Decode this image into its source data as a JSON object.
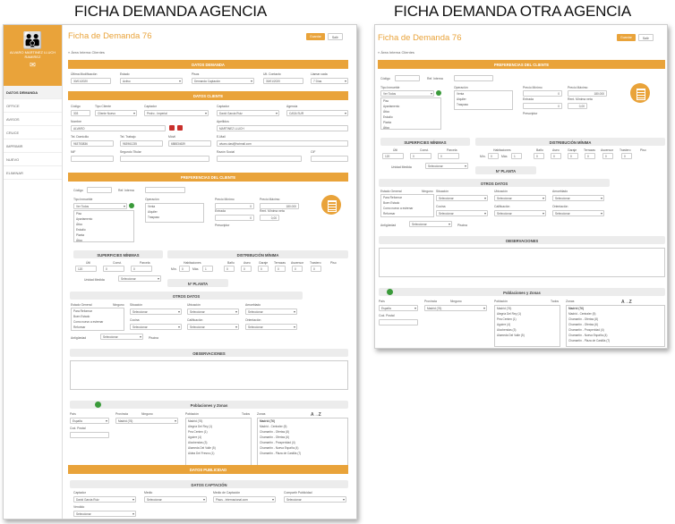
{
  "captions": {
    "left": "FICHA DEMANDA AGENCIA",
    "right": "FICHA DEMANDA OTRA AGENCIA"
  },
  "colors": {
    "accent": "#e9a33a",
    "green": "#3a9a3a",
    "red": "#c9302c"
  },
  "left": {
    "sidebar": {
      "logo_text": "ALVARO MARTINEZ LLUCH\nRAMIREZ",
      "items": [
        "DATOS DEMANDA",
        "OFFICE",
        "AVISOS",
        "CRUCE",
        "IMPRIMIR",
        "NUEVO",
        "ELIMINAR"
      ]
    },
    "title": "Ficha de Demanda 76",
    "buttons": {
      "save": "Guardar",
      "exit": "Salir"
    },
    "breadcrumb": "« Área Interna Clientes",
    "datos_demanda": {
      "header": "DATOS DEMANDA",
      "labels": [
        "Última Modificación",
        "Estado",
        "Pisos",
        "Ult. Contacto",
        "Llamar cada"
      ],
      "values": [
        "30/01/2020",
        "Activo",
        "Demanda Captación",
        "30/01/2020",
        "7 Días"
      ]
    },
    "datos_cliente": {
      "header": "DATOS CLIENTE",
      "labels1": [
        "Código",
        "Tipo Cliente",
        "Captador",
        "Captador",
        "Agencia"
      ],
      "values1": [
        "303",
        "Cliente Nuevo",
        "Pedro - Imperial",
        "David Garcia Ruiz",
        "CASA SUR"
      ],
      "labels2": [
        "Nombre",
        "Apellidos"
      ],
      "values2": [
        "ALVARO",
        "MARTINEZ LLUCH"
      ],
      "labels3": [
        "Tel. Domicilio",
        "Tel. Trabajo",
        "Móvil",
        "E-Mail"
      ],
      "values3": [
        "963753836",
        "963961235",
        "688834639",
        "alvaro.dasi@hotmail.com"
      ],
      "labels4": [
        "NIF",
        "Segundo Titular",
        "Razón Social",
        "CIF"
      ]
    },
    "preferencias": {
      "header": "PREFERENCIAS DEL CLIENTE",
      "codigo_label": "Código",
      "ref_label": "Ref. Interna",
      "tipo_label": "Tipo Inmueble",
      "tipo_value": "Ver Todos",
      "tipos": [
        "Piso",
        "Apartamento",
        "Ático",
        "Estudio",
        "Planta",
        "Ático"
      ],
      "operacion_label": "Operación",
      "operaciones": [
        "Venta",
        "Alquiler",
        "Traspaso"
      ],
      "precio_min_label": "Precio Mínimo",
      "precio_min": "0",
      "precio_max_label": "Precio Máximo",
      "precio_max": "180.000",
      "entrada_label": "Entrada",
      "entrada": "0",
      "renta_label": "Rent. Mínima neta",
      "renta": "0,00",
      "currency": "€",
      "percent": "%",
      "prescriptor_label": "Prescriptor"
    },
    "superficies": {
      "header": "SUPERFICIES MÍNIMAS",
      "labels": [
        "Útil",
        "Const.",
        "Parcela"
      ],
      "values": [
        "120",
        "0",
        "0"
      ],
      "unit": "m²",
      "unidad_label": "Unidad Medida",
      "unidad_value": "Seleccionar"
    },
    "distribucion": {
      "header": "DISTRIBUCIÓN MÍNIMA",
      "labels": [
        "Habitaciones",
        "Baño",
        "Aseo",
        "Garaje",
        "Terrazas",
        "Ascensor",
        "Trastero",
        "Piso"
      ],
      "min_label": "Mín.",
      "max_label": "Máx.",
      "values": [
        "0",
        "1",
        "0",
        "0",
        "0",
        "0",
        "0",
        "0"
      ]
    },
    "nplanta": "Nº PLANTA",
    "otros": {
      "header": "OTROS DATOS",
      "estado_label": "Estado General",
      "ninguno": "Ninguno",
      "estados": [
        "Para Reformar",
        "Buen Estado",
        "Como nuevo a estrenar",
        "Reformar"
      ],
      "labels": [
        "Situación",
        "Ubicación",
        "Amueblado",
        "Cocina",
        "Calificación",
        "Orientación"
      ],
      "value": "Seleccionar",
      "antiguedad_label": "Antigüedad",
      "piscina": "Piscina"
    },
    "observaciones": "OBSERVACIONES",
    "poblaciones": {
      "header": "Poblaciones y Zonas",
      "labels": [
        "País",
        "Provincia",
        "Población",
        "Zonas"
      ],
      "pais": "España",
      "provincia": "Madrid (76)",
      "ninguno": "Ninguno",
      "todos": "Todos",
      "cod_postal": "Cod. Postal",
      "az": "A→Z",
      "poblaciones": [
        "Madrid (76)",
        "Alegría Del Rey (1)",
        "Pea Centen (1)",
        "Aguirre (4)",
        "Alcobendas (3)",
        "Alameda Del Valle (5)",
        "Aldea Del Fresno (1)"
      ],
      "zonas_header": "Madrid (76)",
      "zonas": [
        "Madrid - Centraler (5)",
        "Chamartín - Ofertas (8)",
        "Chamartín - Ofertas (6)",
        "Chamartín - Prosperidad (4)",
        "Chamartín - Nueva España (4)",
        "Chamartín - Plaza de Castilla (7)"
      ]
    },
    "publicidad": "DATOS PUBLICIDAD",
    "captacion": {
      "header": "DATOS CAPTACIÓN",
      "labels": [
        "Captador",
        "Medio",
        "Medio de Captación",
        "Compartir Publicidad"
      ],
      "values": [
        "David Garcia Ruiz",
        "Seleccionar",
        "Pisos - Internacional.com",
        "Seleccionar"
      ],
      "vendido_label": "Vendido",
      "vendido_value": "Seleccionar"
    }
  },
  "right": {
    "title": "Ficha de Demanda 76",
    "buttons": {
      "save": "Guardar",
      "exit": "Salir"
    },
    "breadcrumb": "« Área Interna Clientes"
  }
}
